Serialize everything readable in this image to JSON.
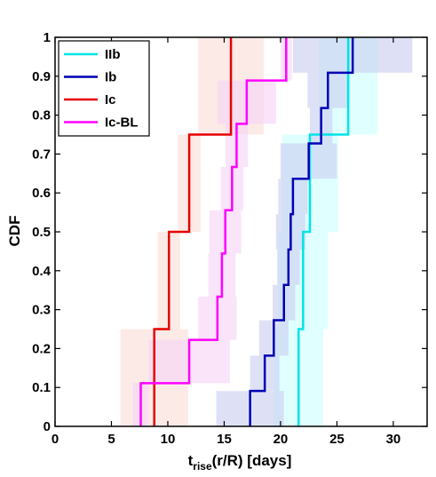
{
  "chart_data": {
    "type": "line",
    "subtype": "step-cdf",
    "xlabel": {
      "main": "t",
      "subscript": "rise",
      "rest": "(r/R) [days]"
    },
    "ylabel": "CDF",
    "xlim": [
      0,
      33
    ],
    "ylim": [
      0,
      1
    ],
    "xticks": [
      "0",
      "5",
      "10",
      "15",
      "20",
      "25",
      "30"
    ],
    "yticks": [
      "0",
      "0.1",
      "0.2",
      "0.3",
      "0.4",
      "0.5",
      "0.6",
      "0.7",
      "0.8",
      "0.9",
      "1"
    ],
    "legend_position": "top-left",
    "series": [
      {
        "name": "IIb",
        "color": "#00e5e5",
        "band_color": "#ccffff",
        "x": [
          21.6,
          22.0,
          22.6,
          26.0
        ],
        "band_halfwidth": [
          2.2,
          2.2,
          2.5,
          2.6
        ]
      },
      {
        "name": "Ib",
        "color": "#0000b4",
        "band_color": "#c8cdf0",
        "x": [
          17.3,
          18.6,
          19.4,
          20.3,
          20.7,
          20.9,
          21.1,
          22.5,
          23.6,
          24.2,
          26.4
        ],
        "band_halfwidth": [
          3.0,
          1.3,
          1.3,
          1.0,
          1.0,
          1.3,
          1.3,
          2.5,
          1.0,
          1.8,
          5.3
        ]
      },
      {
        "name": "Ic",
        "color": "#e60000",
        "band_color": "#fadcd7",
        "x": [
          8.8,
          10.1,
          11.9,
          15.6
        ],
        "band_halfwidth": [
          3.0,
          1.0,
          1.0,
          2.9
        ]
      },
      {
        "name": "Ic-BL",
        "color": "#ff00ff",
        "band_color": "#f5d2f5",
        "x": [
          7.6,
          11.9,
          14.4,
          14.8,
          15.1,
          15.7,
          16.1,
          17.0,
          20.5
        ],
        "band_halfwidth": [
          0.7,
          3.6,
          1.7,
          1.2,
          1.4,
          1.0,
          1.0,
          2.6,
          0.5
        ]
      }
    ]
  }
}
